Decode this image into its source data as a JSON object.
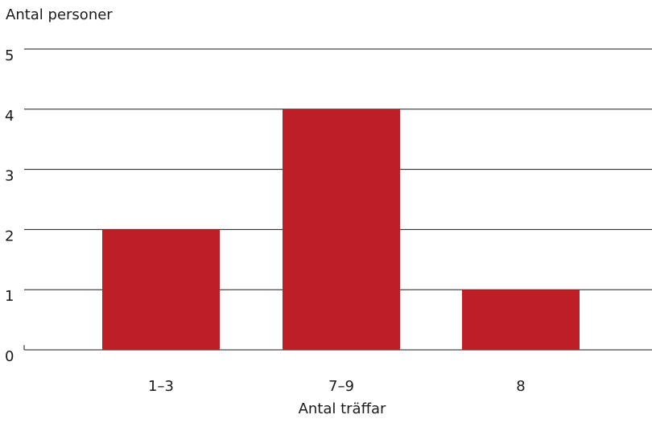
{
  "chart_data": {
    "type": "bar",
    "title": "",
    "ylabel": "Antal personer",
    "xlabel": "Antal träffar",
    "categories": [
      "1–3",
      "7–9",
      "8"
    ],
    "values": [
      2,
      4,
      1
    ],
    "ylim": [
      0,
      5
    ],
    "yticks": [
      "0",
      "1",
      "2",
      "3",
      "4",
      "5"
    ],
    "grid": true,
    "legend": "none",
    "colors": {
      "bar": "#be1e26",
      "grid": "#1a1a1a",
      "text": "#1a1a1a"
    }
  }
}
